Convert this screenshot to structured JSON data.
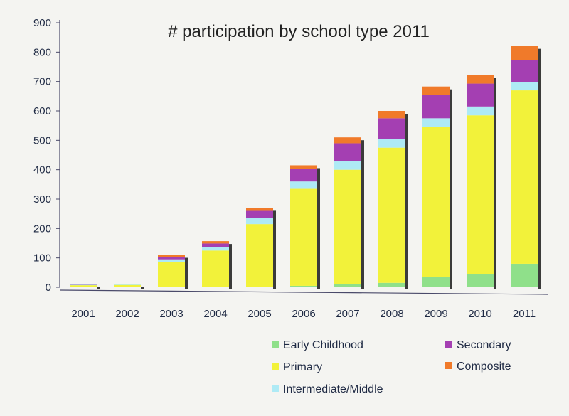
{
  "chart_data": {
    "type": "bar",
    "stacked": true,
    "title": "# participation by school type 2011",
    "xlabel": "",
    "ylabel": "",
    "ylim": [
      0,
      900
    ],
    "yticks": [
      0,
      100,
      200,
      300,
      400,
      500,
      600,
      700,
      800,
      900
    ],
    "categories": [
      "2001",
      "2002",
      "2003",
      "2004",
      "2005",
      "2006",
      "2007",
      "2008",
      "2009",
      "2010",
      "2011"
    ],
    "series": [
      {
        "name": "Early Childhood",
        "color": "#8fe08a",
        "values": [
          2,
          2,
          0,
          0,
          0,
          5,
          10,
          15,
          35,
          45,
          80
        ]
      },
      {
        "name": "Primary",
        "color": "#f2f23a",
        "values": [
          5,
          6,
          85,
          125,
          215,
          330,
          390,
          460,
          510,
          540,
          590
        ]
      },
      {
        "name": "Intermediate/Middle",
        "color": "#aeeaf5",
        "values": [
          2,
          2,
          10,
          12,
          20,
          25,
          30,
          30,
          30,
          30,
          28
        ]
      },
      {
        "name": "Secondary",
        "color": "#a43fb2",
        "values": [
          1,
          1,
          8,
          12,
          25,
          42,
          60,
          70,
          80,
          78,
          75
        ]
      },
      {
        "name": "Composite",
        "color": "#f07a2a",
        "values": [
          0,
          0,
          7,
          8,
          10,
          13,
          20,
          25,
          28,
          30,
          48
        ]
      }
    ],
    "legend_position": "bottom-right",
    "grid": false
  }
}
